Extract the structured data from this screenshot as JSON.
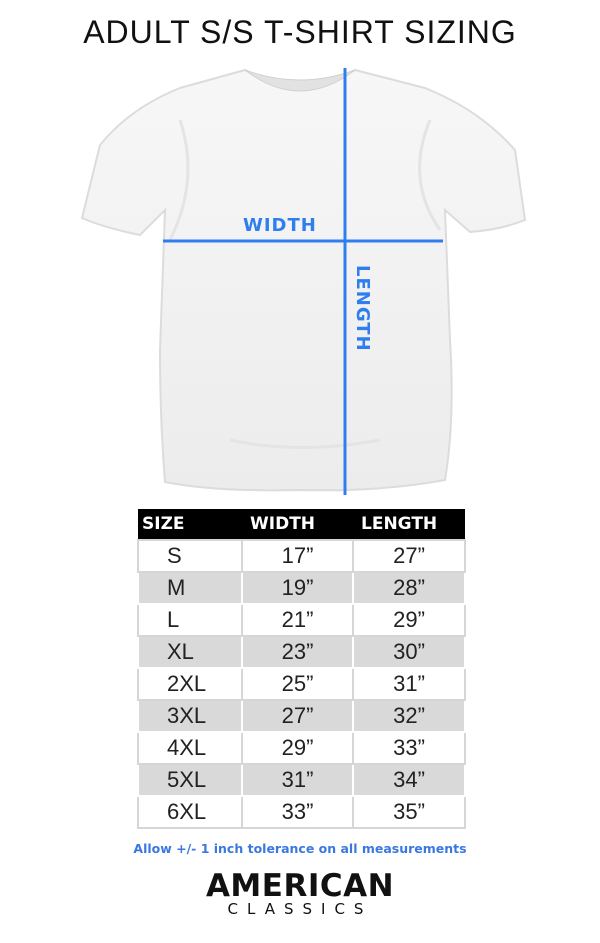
{
  "title": "ADULT S/S T-SHIRT SIZING",
  "diagram": {
    "width_label": "WIDTH",
    "length_label": "LENGTH",
    "line_color": "#2f7ef0"
  },
  "table": {
    "headers": [
      "SIZE",
      "WIDTH",
      "LENGTH"
    ],
    "rows": [
      [
        "S",
        "17”",
        "27”"
      ],
      [
        "M",
        "19”",
        "28”"
      ],
      [
        "L",
        "21”",
        "29”"
      ],
      [
        "XL",
        "23”",
        "30”"
      ],
      [
        "2XL",
        "25”",
        "31”"
      ],
      [
        "3XL",
        "27”",
        "32”"
      ],
      [
        "4XL",
        "29”",
        "33”"
      ],
      [
        "5XL",
        "31”",
        "34”"
      ],
      [
        "6XL",
        "33”",
        "35”"
      ]
    ]
  },
  "note": "Allow +/- 1 inch tolerance on all measurements",
  "brand": {
    "line1": "AMERICAN",
    "line2": "CLASSICS"
  }
}
